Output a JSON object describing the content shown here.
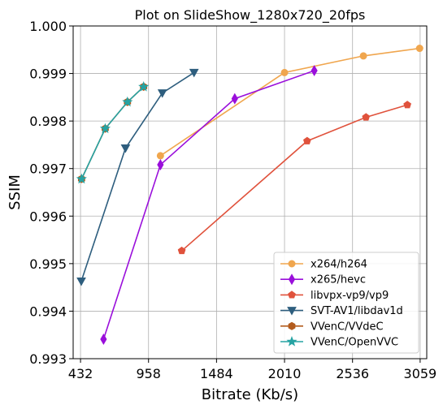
{
  "chart_data": {
    "type": "line",
    "title": "Plot on SlideShow_1280x720_20fps",
    "xlabel": "Bitrate (Kb/s)",
    "ylabel": "SSIM",
    "xlim": [
      375,
      3110
    ],
    "ylim": [
      0.993,
      1.0
    ],
    "xticks": [
      432,
      958,
      1484,
      2010,
      2536,
      3059
    ],
    "yticks": [
      0.993,
      0.994,
      0.995,
      0.996,
      0.997,
      0.998,
      0.999,
      1.0
    ],
    "ytick_labels": [
      "0.993",
      "0.994",
      "0.995",
      "0.996",
      "0.997",
      "0.998",
      "0.999",
      "1.000"
    ],
    "grid": true,
    "legend_position": "lower-right",
    "series": [
      {
        "name": "x264/h264",
        "color": "#f0a64e",
        "marker": "circle",
        "x": [
          1050,
          2010,
          2620,
          3055
        ],
        "y": [
          0.99727,
          0.99902,
          0.99937,
          0.99953
        ]
      },
      {
        "name": "x265/hevc",
        "color": "#9a0fdb",
        "marker": "thin-diamond",
        "x": [
          610,
          1050,
          1625,
          2240
        ],
        "y": [
          0.99341,
          0.99708,
          0.99847,
          0.99906
        ]
      },
      {
        "name": "libvpx-vp9/vp9",
        "color": "#e0523c",
        "marker": "pentagon",
        "x": [
          1215,
          2185,
          2640,
          2960
        ],
        "y": [
          0.99527,
          0.99758,
          0.99808,
          0.99834
        ]
      },
      {
        "name": "SVT-AV1/libdav1d",
        "color": "#2e5e7e",
        "marker": "triangle-down",
        "x": [
          438,
          780,
          1065,
          1310
        ],
        "y": [
          0.99463,
          0.99743,
          0.99859,
          0.99902
        ]
      },
      {
        "name": "VVenC/VVdeC",
        "color": "#b35c1e",
        "marker": "hexagon",
        "x": [
          440,
          623,
          795,
          920
        ],
        "y": [
          0.99678,
          0.99784,
          0.9984,
          0.99872
        ]
      },
      {
        "name": "VVenC/OpenVVC",
        "color": "#26a3a3",
        "marker": "star",
        "x": [
          440,
          623,
          795,
          920
        ],
        "y": [
          0.99678,
          0.99784,
          0.9984,
          0.99872
        ]
      }
    ]
  }
}
